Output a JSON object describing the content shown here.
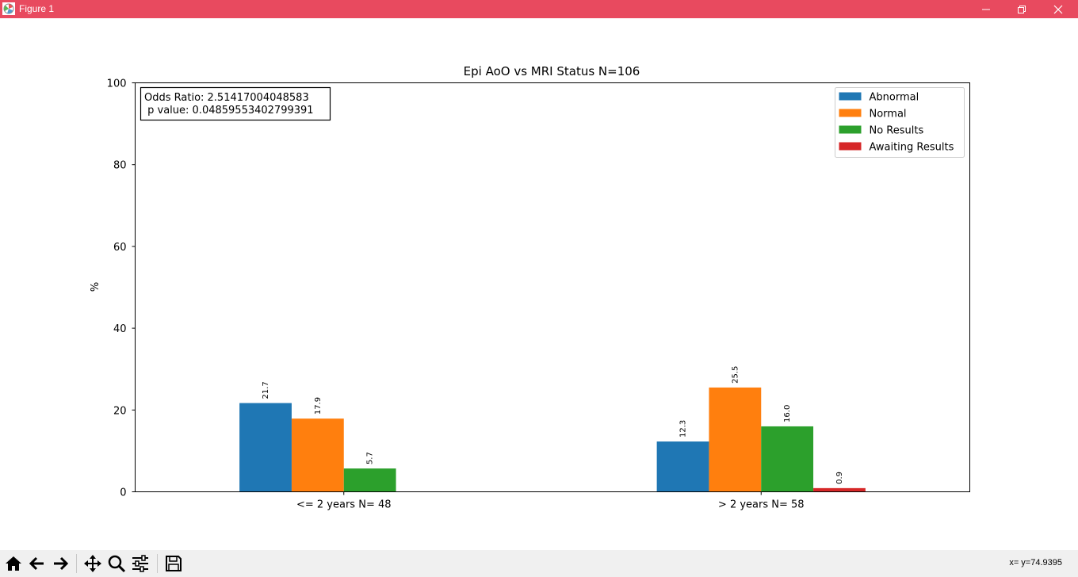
{
  "window": {
    "title": "Figure 1",
    "titlebar_color": "#e84a5f"
  },
  "toolbar": {
    "buttons": [
      "home-icon",
      "back-arrow-icon",
      "forward-arrow-icon",
      "pan-icon",
      "zoom-icon",
      "configure-subplots-icon",
      "save-icon"
    ],
    "coords_text": "x= y=74.9395"
  },
  "chart_data": {
    "type": "bar",
    "title": "Epi AoO vs MRI Status N=106",
    "xlabel": "",
    "ylabel": "%",
    "ylim": [
      0,
      100
    ],
    "yticks": [
      "0",
      "20",
      "40",
      "60",
      "80",
      "100"
    ],
    "categories": [
      "<= 2 years N= 48",
      "> 2 years N= 58"
    ],
    "series": [
      {
        "name": "Abnormal",
        "color": "#1f77b4",
        "values": [
          21.7,
          12.3
        ],
        "labels": [
          "21.7",
          "12.3"
        ]
      },
      {
        "name": "Normal",
        "color": "#ff7f0e",
        "values": [
          17.9,
          25.5
        ],
        "labels": [
          "17.9",
          "25.5"
        ]
      },
      {
        "name": "No Results",
        "color": "#2ca02c",
        "values": [
          5.7,
          16.0
        ],
        "labels": [
          "5.7",
          "16.0"
        ]
      },
      {
        "name": "Awaiting Results",
        "color": "#d62728",
        "values": [
          0,
          0.9
        ],
        "labels": [
          "",
          "0.9"
        ]
      }
    ],
    "legend_position": "top-right",
    "annotation": {
      "line1": "Odds Ratio: 2.51417004048583",
      "line2": " p value: 0.04859553402799391"
    }
  }
}
